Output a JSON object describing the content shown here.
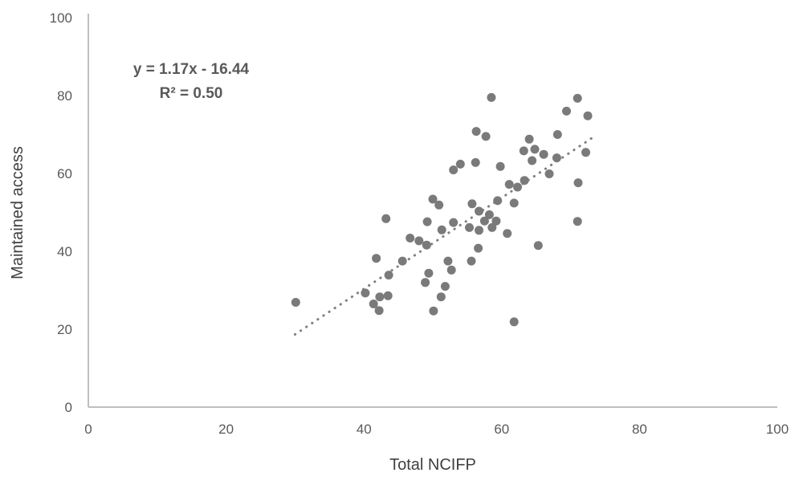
{
  "chart_data": {
    "type": "scatter",
    "title": "",
    "xlabel": "Total NCIFP",
    "ylabel": "Maintained access",
    "xlim": [
      0,
      100
    ],
    "ylim": [
      0,
      100
    ],
    "xticks": [
      0,
      20,
      40,
      60,
      80,
      100
    ],
    "yticks": [
      0,
      20,
      40,
      60,
      80,
      100
    ],
    "grid": false,
    "legend": "none",
    "annotation": {
      "line1": "y = 1.17x - 16.44",
      "line2": "R² = 0.50"
    },
    "trendline": {
      "slope": 1.17,
      "intercept": -16.44,
      "r_squared": 0.5,
      "x_start": 30,
      "x_end": 73,
      "style": "dotted"
    },
    "colors": {
      "marker": "#7a7a7a",
      "trendline": "#7f7f7f",
      "axis_line": "#bfbfbf",
      "text": "#595959"
    },
    "points": [
      [
        58.5,
        79.5
      ],
      [
        71.0,
        79.3
      ],
      [
        69.4,
        76.0
      ],
      [
        72.5,
        74.8
      ],
      [
        56.3,
        70.8
      ],
      [
        57.7,
        69.5
      ],
      [
        68.1,
        70.0
      ],
      [
        64.0,
        68.8
      ],
      [
        63.2,
        65.8
      ],
      [
        64.8,
        66.2
      ],
      [
        66.1,
        64.9
      ],
      [
        64.4,
        63.3
      ],
      [
        72.2,
        65.4
      ],
      [
        68.0,
        64.0
      ],
      [
        59.8,
        61.8
      ],
      [
        56.2,
        62.8
      ],
      [
        54.0,
        62.4
      ],
      [
        53.0,
        60.9
      ],
      [
        61.1,
        57.2
      ],
      [
        62.3,
        56.5
      ],
      [
        63.3,
        58.2
      ],
      [
        66.9,
        59.9
      ],
      [
        71.1,
        57.6
      ],
      [
        71.0,
        47.7
      ],
      [
        65.3,
        41.5
      ],
      [
        61.8,
        21.9
      ],
      [
        59.4,
        53.0
      ],
      [
        61.8,
        52.4
      ],
      [
        55.7,
        52.2
      ],
      [
        56.7,
        50.3
      ],
      [
        58.2,
        49.4
      ],
      [
        57.5,
        47.8
      ],
      [
        59.2,
        47.8
      ],
      [
        55.3,
        46.1
      ],
      [
        56.7,
        45.4
      ],
      [
        58.6,
        46.1
      ],
      [
        60.8,
        44.6
      ],
      [
        56.6,
        40.8
      ],
      [
        55.6,
        37.5
      ],
      [
        50.0,
        53.4
      ],
      [
        50.9,
        51.9
      ],
      [
        49.2,
        47.6
      ],
      [
        53.0,
        47.4
      ],
      [
        51.3,
        45.5
      ],
      [
        43.2,
        48.4
      ],
      [
        46.7,
        43.4
      ],
      [
        48.0,
        42.7
      ],
      [
        49.1,
        41.6
      ],
      [
        41.8,
        38.2
      ],
      [
        45.6,
        37.5
      ],
      [
        43.6,
        33.9
      ],
      [
        52.2,
        37.5
      ],
      [
        52.7,
        35.2
      ],
      [
        49.4,
        34.4
      ],
      [
        48.9,
        32.0
      ],
      [
        51.8,
        31.0
      ],
      [
        51.2,
        28.3
      ],
      [
        50.1,
        24.7
      ],
      [
        40.2,
        29.3
      ],
      [
        42.3,
        28.3
      ],
      [
        43.5,
        28.6
      ],
      [
        41.4,
        26.5
      ],
      [
        42.2,
        24.8
      ],
      [
        30.1,
        26.9
      ]
    ]
  }
}
